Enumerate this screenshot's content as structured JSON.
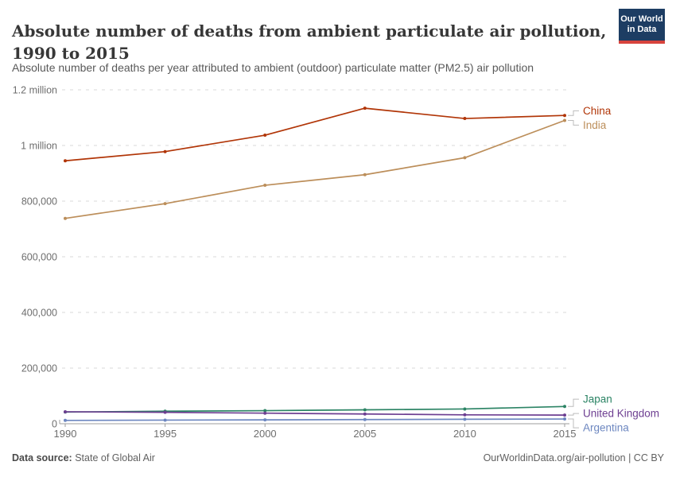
{
  "header": {
    "title": "Absolute number of deaths from ambient particulate air pollution, 1990 to 2015",
    "subtitle": "Absolute number of deaths per year attributed to ambient (outdoor) particulate matter (PM2.5) air pollution",
    "logo": {
      "line1": "Our World",
      "line2": "in Data",
      "bg_color": "#1d3d63",
      "bar_color": "#d7443d"
    }
  },
  "footer": {
    "source_label": "Data source:",
    "source_value": " State of Global Air",
    "right_text": "OurWorldinData.org/air-pollution | CC BY"
  },
  "chart_data": {
    "type": "line",
    "title": "Absolute number of deaths from ambient particulate air pollution, 1990 to 2015",
    "xlabel": "",
    "ylabel": "",
    "x": [
      1990,
      1995,
      2000,
      2005,
      2010,
      2015
    ],
    "x_tick_labels": [
      "1990",
      "1995",
      "2000",
      "2005",
      "2010",
      "2015"
    ],
    "xlim": [
      1990,
      2015
    ],
    "ylim": [
      0,
      1200000
    ],
    "grid": "horizontal-dashed",
    "legend_position": "end-of-line-labels-right",
    "yticks": [
      {
        "value": 0,
        "label": "0"
      },
      {
        "value": 200000,
        "label": "200,000"
      },
      {
        "value": 400000,
        "label": "400,000"
      },
      {
        "value": 600000,
        "label": "600,000"
      },
      {
        "value": 800000,
        "label": "800,000"
      },
      {
        "value": 1000000,
        "label": "1 million"
      },
      {
        "value": 1200000,
        "label": "1.2 million"
      }
    ],
    "series": [
      {
        "name": "China",
        "color": "#B13507",
        "values": [
          945000,
          978000,
          1037000,
          1134000,
          1097000,
          1108000
        ]
      },
      {
        "name": "India",
        "color": "#BC8E5A",
        "values": [
          738000,
          791000,
          857000,
          895000,
          956000,
          1090000
        ]
      },
      {
        "name": "Japan",
        "color": "#2C8465",
        "values": [
          42000,
          45000,
          47000,
          50000,
          53000,
          62000
        ]
      },
      {
        "name": "United Kingdom",
        "color": "#6D3E91",
        "values": [
          43000,
          41000,
          38000,
          35000,
          32000,
          31000
        ]
      },
      {
        "name": "Argentina",
        "color": "#6D87C0",
        "values": [
          12000,
          13000,
          14000,
          15000,
          16000,
          17000
        ]
      }
    ],
    "style": {
      "gridline_color": "#d9d9d9",
      "axis_color": "#9e9e9e",
      "tick_label_color": "#6e6e6e",
      "connector_color": "#bcbcbc"
    }
  }
}
